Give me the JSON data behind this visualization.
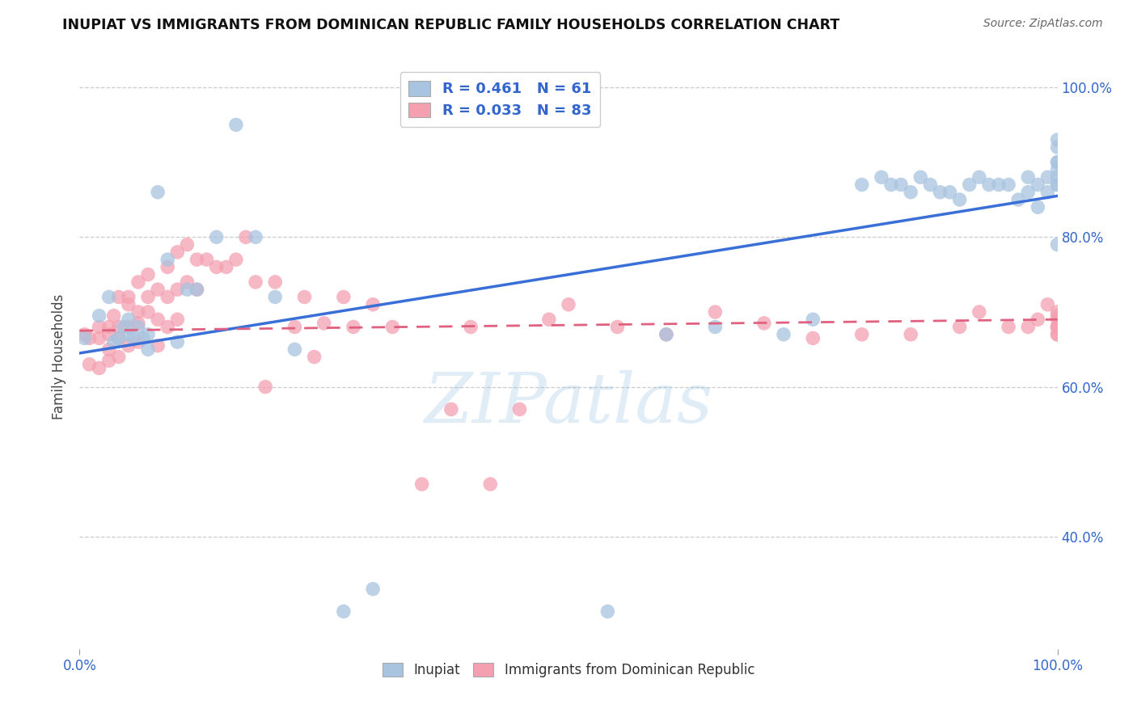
{
  "title": "INUPIAT VS IMMIGRANTS FROM DOMINICAN REPUBLIC FAMILY HOUSEHOLDS CORRELATION CHART",
  "source": "Source: ZipAtlas.com",
  "ylabel": "Family Households",
  "legend_labels": [
    "Inupiat",
    "Immigrants from Dominican Republic"
  ],
  "R_blue": 0.461,
  "N_blue": 61,
  "R_pink": 0.033,
  "N_pink": 83,
  "blue_color": "#a8c4e0",
  "pink_color": "#f4a0b0",
  "blue_line_color": "#3a6fd8",
  "pink_line_color": "#e06080",
  "watermark": "ZIPatlas",
  "xlim": [
    0,
    1
  ],
  "ylim": [
    0.25,
    1.03
  ],
  "yticks": [
    0.4,
    0.6,
    0.8,
    1.0
  ],
  "xticks": [
    0.0,
    1.0
  ],
  "xticklabels": [
    "0.0%",
    "100.0%"
  ],
  "yticklabels": [
    "40.0%",
    "60.0%",
    "80.0%",
    "100.0%"
  ],
  "blue_x": [
    0.005,
    0.02,
    0.03,
    0.035,
    0.04,
    0.045,
    0.05,
    0.05,
    0.055,
    0.06,
    0.065,
    0.07,
    0.07,
    0.08,
    0.09,
    0.1,
    0.11,
    0.12,
    0.14,
    0.16,
    0.18,
    0.2,
    0.22,
    0.27,
    0.3,
    0.54,
    0.6,
    0.65,
    0.72,
    0.75,
    0.8,
    0.82,
    0.83,
    0.84,
    0.85,
    0.86,
    0.87,
    0.88,
    0.89,
    0.9,
    0.91,
    0.92,
    0.93,
    0.94,
    0.95,
    0.96,
    0.97,
    0.97,
    0.98,
    0.98,
    0.99,
    0.99,
    1.0,
    1.0,
    1.0,
    1.0,
    1.0,
    1.0,
    1.0,
    1.0,
    1.0
  ],
  "blue_y": [
    0.665,
    0.695,
    0.72,
    0.66,
    0.665,
    0.68,
    0.69,
    0.67,
    0.665,
    0.68,
    0.665,
    0.67,
    0.65,
    0.86,
    0.77,
    0.66,
    0.73,
    0.73,
    0.8,
    0.95,
    0.8,
    0.72,
    0.65,
    0.3,
    0.33,
    0.3,
    0.67,
    0.68,
    0.67,
    0.69,
    0.87,
    0.88,
    0.87,
    0.87,
    0.86,
    0.88,
    0.87,
    0.86,
    0.86,
    0.85,
    0.87,
    0.88,
    0.87,
    0.87,
    0.87,
    0.85,
    0.88,
    0.86,
    0.87,
    0.84,
    0.88,
    0.86,
    0.87,
    0.9,
    0.93,
    0.92,
    0.9,
    0.89,
    0.88,
    0.87,
    0.79
  ],
  "pink_x": [
    0.005,
    0.01,
    0.01,
    0.02,
    0.02,
    0.02,
    0.03,
    0.03,
    0.03,
    0.03,
    0.035,
    0.04,
    0.04,
    0.04,
    0.04,
    0.05,
    0.05,
    0.05,
    0.05,
    0.06,
    0.06,
    0.06,
    0.06,
    0.07,
    0.07,
    0.07,
    0.08,
    0.08,
    0.08,
    0.09,
    0.09,
    0.09,
    0.1,
    0.1,
    0.1,
    0.11,
    0.11,
    0.12,
    0.12,
    0.13,
    0.14,
    0.15,
    0.16,
    0.17,
    0.18,
    0.19,
    0.2,
    0.22,
    0.23,
    0.24,
    0.25,
    0.27,
    0.28,
    0.3,
    0.32,
    0.35,
    0.38,
    0.4,
    0.42,
    0.45,
    0.48,
    0.5,
    0.55,
    0.6,
    0.65,
    0.7,
    0.75,
    0.8,
    0.85,
    0.9,
    0.92,
    0.95,
    0.97,
    0.98,
    0.99,
    1.0,
    1.0,
    1.0,
    1.0,
    1.0,
    1.0,
    1.0,
    1.0
  ],
  "pink_y": [
    0.67,
    0.665,
    0.63,
    0.68,
    0.665,
    0.625,
    0.67,
    0.65,
    0.68,
    0.635,
    0.695,
    0.72,
    0.68,
    0.665,
    0.64,
    0.72,
    0.71,
    0.68,
    0.655,
    0.74,
    0.7,
    0.685,
    0.66,
    0.75,
    0.72,
    0.7,
    0.73,
    0.69,
    0.655,
    0.76,
    0.72,
    0.68,
    0.78,
    0.73,
    0.69,
    0.79,
    0.74,
    0.77,
    0.73,
    0.77,
    0.76,
    0.76,
    0.77,
    0.8,
    0.74,
    0.6,
    0.74,
    0.68,
    0.72,
    0.64,
    0.685,
    0.72,
    0.68,
    0.71,
    0.68,
    0.47,
    0.57,
    0.68,
    0.47,
    0.57,
    0.69,
    0.71,
    0.68,
    0.67,
    0.7,
    0.685,
    0.665,
    0.67,
    0.67,
    0.68,
    0.7,
    0.68,
    0.68,
    0.69,
    0.71,
    0.695,
    0.68,
    0.67,
    0.68,
    0.7,
    0.69,
    0.68,
    0.67
  ]
}
